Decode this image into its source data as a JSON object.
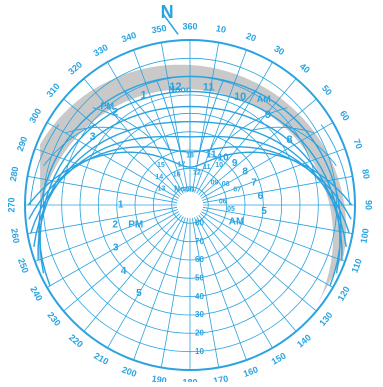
{
  "colors": {
    "line": "#2aa3e0",
    "fill": "#c9c9c9",
    "background": "#ffffff"
  },
  "north_arrow": {
    "label": "N"
  },
  "azimuth_ticks": {
    "step_deg": 10,
    "labels": [
      "360",
      "10",
      "20",
      "30",
      "40",
      "50",
      "60",
      "70",
      "80",
      "90",
      "100",
      "110",
      "120",
      "130",
      "140",
      "150",
      "160",
      "170",
      "180",
      "190",
      "200",
      "210",
      "220",
      "230",
      "240",
      "250",
      "260",
      "270",
      "280",
      "290",
      "300",
      "310",
      "320",
      "330",
      "340",
      "350"
    ]
  },
  "altitude_ticks": {
    "labels": [
      "10",
      "20",
      "30",
      "40",
      "50",
      "60",
      "70",
      "80"
    ]
  },
  "annotations": {
    "am": "AM",
    "pm": "PM",
    "pm_upper": "PM",
    "am_upper": "AM",
    "noon": "Noon",
    "noon_upper": "Noon",
    "hours_am_lower": [
      "5",
      "6",
      "7",
      "8",
      "9",
      "10",
      "11"
    ],
    "hours_pm_lower": [
      "1",
      "2",
      "3",
      "4",
      "5"
    ],
    "hours_upper": [
      "3",
      "2",
      "1",
      "12",
      "11",
      "10",
      "9",
      "8"
    ],
    "hours_small": [
      "13",
      "14",
      "15",
      "16",
      "17",
      "18",
      "12",
      "11",
      "10",
      "09",
      "08",
      "07",
      "06",
      "05"
    ]
  }
}
